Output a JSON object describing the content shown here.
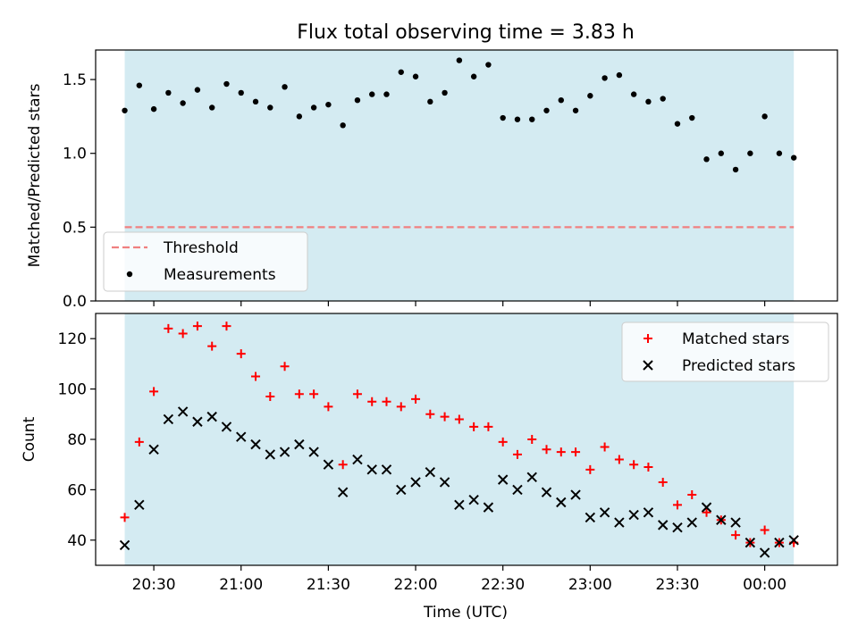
{
  "figure": {
    "title": "Flux total observing time = 3.83 h",
    "xlabel": "Time (UTC)",
    "shade_color": "#d4ebf2",
    "threshold_color": "#f08080",
    "matched_color": "#ff0000",
    "predicted_color": "#000000",
    "x_ticks": [
      "20:30",
      "21:00",
      "21:30",
      "22:00",
      "22:30",
      "23:00",
      "23:30",
      "00:00"
    ]
  },
  "chart_data": [
    {
      "type": "scatter",
      "ylabel": "Matched/Predicted stars",
      "xlim": [
        "20:10",
        "00:25"
      ],
      "ylim": [
        0,
        1.7
      ],
      "y_ticks": [
        "0.0",
        "0.5",
        "1.0",
        "1.5"
      ],
      "shaded_span": [
        "20:20",
        "00:10"
      ],
      "legend_position": "lower-left",
      "legend": [
        "Threshold",
        "Measurements"
      ],
      "threshold": 0.5,
      "series": [
        {
          "name": "Measurements",
          "x": [
            "20:20",
            "20:25",
            "20:30",
            "20:35",
            "20:40",
            "20:45",
            "20:50",
            "20:55",
            "21:00",
            "21:05",
            "21:10",
            "21:15",
            "21:20",
            "21:25",
            "21:30",
            "21:35",
            "21:40",
            "21:45",
            "21:50",
            "21:55",
            "22:00",
            "22:05",
            "22:10",
            "22:15",
            "22:20",
            "22:25",
            "22:30",
            "22:35",
            "22:40",
            "22:45",
            "22:50",
            "22:55",
            "23:00",
            "23:05",
            "23:10",
            "23:15",
            "23:20",
            "23:25",
            "23:30",
            "23:35",
            "23:40",
            "23:45",
            "23:50",
            "23:55",
            "00:00",
            "00:05",
            "00:10"
          ],
          "y": [
            1.29,
            1.46,
            1.3,
            1.41,
            1.34,
            1.43,
            1.31,
            1.47,
            1.41,
            1.35,
            1.31,
            1.45,
            1.25,
            1.31,
            1.33,
            1.19,
            1.36,
            1.4,
            1.4,
            1.55,
            1.52,
            1.35,
            1.41,
            1.63,
            1.52,
            1.6,
            1.24,
            1.23,
            1.23,
            1.29,
            1.36,
            1.29,
            1.39,
            1.51,
            1.53,
            1.4,
            1.35,
            1.37,
            1.2,
            1.24,
            0.96,
            1.0,
            0.89,
            1.0,
            1.25,
            1.0,
            0.97
          ]
        }
      ]
    },
    {
      "type": "scatter",
      "ylabel": "Count",
      "xlim": [
        "20:10",
        "00:25"
      ],
      "ylim": [
        30,
        130
      ],
      "y_ticks": [
        "40",
        "60",
        "80",
        "100",
        "120"
      ],
      "shaded_span": [
        "20:20",
        "00:10"
      ],
      "legend_position": "top-right",
      "legend": [
        "Matched stars",
        "Predicted stars"
      ],
      "series": [
        {
          "name": "Matched stars",
          "x": [
            "20:20",
            "20:25",
            "20:30",
            "20:35",
            "20:40",
            "20:45",
            "20:50",
            "20:55",
            "21:00",
            "21:05",
            "21:10",
            "21:15",
            "21:20",
            "21:25",
            "21:30",
            "21:35",
            "21:40",
            "21:45",
            "21:50",
            "21:55",
            "22:00",
            "22:05",
            "22:10",
            "22:15",
            "22:20",
            "22:25",
            "22:30",
            "22:35",
            "22:40",
            "22:45",
            "22:50",
            "22:55",
            "23:00",
            "23:05",
            "23:10",
            "23:15",
            "23:20",
            "23:25",
            "23:30",
            "23:35",
            "23:40",
            "23:45",
            "23:50",
            "23:55",
            "00:00",
            "00:05",
            "00:10"
          ],
          "y": [
            49,
            79,
            99,
            124,
            122,
            125,
            117,
            125,
            114,
            105,
            97,
            109,
            98,
            98,
            93,
            70,
            98,
            95,
            95,
            93,
            96,
            90,
            89,
            88,
            85,
            85,
            79,
            74,
            80,
            76,
            75,
            75,
            68,
            77,
            72,
            70,
            69,
            63,
            54,
            58,
            51,
            48,
            42,
            39,
            44,
            39,
            39
          ]
        },
        {
          "name": "Predicted stars",
          "x": [
            "20:20",
            "20:25",
            "20:30",
            "20:35",
            "20:40",
            "20:45",
            "20:50",
            "20:55",
            "21:00",
            "21:05",
            "21:10",
            "21:15",
            "21:20",
            "21:25",
            "21:30",
            "21:35",
            "21:40",
            "21:45",
            "21:50",
            "21:55",
            "22:00",
            "22:05",
            "22:10",
            "22:15",
            "22:20",
            "22:25",
            "22:30",
            "22:35",
            "22:40",
            "22:45",
            "22:50",
            "22:55",
            "23:00",
            "23:05",
            "23:10",
            "23:15",
            "23:20",
            "23:25",
            "23:30",
            "23:35",
            "23:40",
            "23:45",
            "23:50",
            "23:55",
            "00:00",
            "00:05",
            "00:10"
          ],
          "y": [
            38,
            54,
            76,
            88,
            91,
            87,
            89,
            85,
            81,
            78,
            74,
            75,
            78,
            75,
            70,
            59,
            72,
            68,
            68,
            60,
            63,
            67,
            63,
            54,
            56,
            53,
            64,
            60,
            65,
            59,
            55,
            58,
            49,
            51,
            47,
            50,
            51,
            46,
            45,
            47,
            53,
            48,
            47,
            39,
            35,
            39,
            40
          ]
        }
      ]
    }
  ]
}
